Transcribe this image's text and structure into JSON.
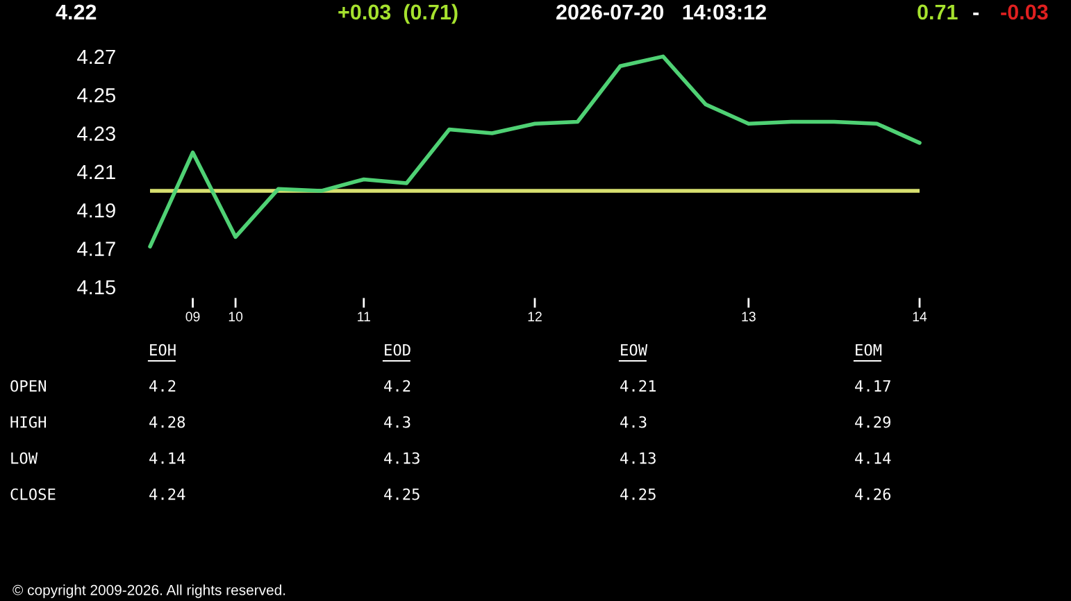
{
  "chart_data": [
    {
      "type": "line",
      "annotations": [
        "4.22",
        "+0.03  (0.71)",
        "2026-07-20   14:03:12",
        "0.71",
        "-",
        "-0.03",
        "© copyright 2009-2026. All rights reserved."
      ],
      "categories": [
        null,
        "09",
        "10",
        null,
        null,
        "11",
        null,
        null,
        null,
        "12",
        null,
        null,
        null,
        null,
        "13",
        null,
        null,
        null,
        "14"
      ],
      "series": [
        {
          "color": "#4fd174",
          "values": [
            4.171,
            4.22,
            4.176,
            4.201,
            4.2,
            4.206,
            4.204,
            4.232,
            4.23,
            4.235,
            4.236,
            4.265,
            4.27,
            4.245,
            4.235,
            4.236,
            4.236,
            4.235,
            4.225
          ]
        }
      ],
      "ylim": [
        4.15,
        4.27
      ],
      "yticks": [
        4.15,
        4.17,
        4.19,
        4.21,
        4.23,
        4.25,
        4.27
      ],
      "ref_lines": [
        {
          "axis": "y",
          "value": 4.2,
          "color": "#d8e070"
        }
      ],
      "grid": false,
      "legend": false,
      "marker": "none",
      "line_style": "solid"
    },
    {
      "type": "other",
      "categories": [
        "EOH",
        "EOD",
        "EOW",
        "EOM"
      ],
      "y_categories": [
        "OPEN",
        "HIGH",
        "LOW",
        "CLOSE"
      ],
      "cell_labels": [
        [
          "4.2",
          "4.2",
          "4.21",
          "4.17"
        ],
        [
          "4.28",
          "4.3",
          "4.3",
          "4.29"
        ],
        [
          "4.14",
          "4.13",
          "4.13",
          "4.14"
        ],
        [
          "4.24",
          "4.25",
          "4.25",
          "4.26"
        ]
      ]
    }
  ]
}
